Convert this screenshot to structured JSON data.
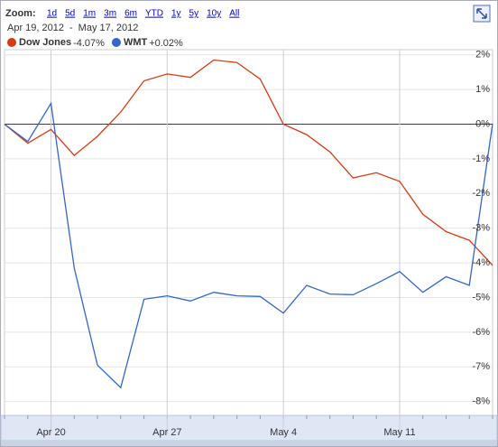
{
  "toolbar": {
    "zoom_label": "Zoom:",
    "zoom_options": [
      "1d",
      "5d",
      "1m",
      "3m",
      "6m",
      "YTD",
      "1y",
      "5y",
      "10y",
      "All"
    ],
    "date_from": "Apr 19, 2012",
    "date_sep": "-",
    "date_to": "May 17, 2012"
  },
  "chart_data": {
    "type": "line",
    "categories": [
      null,
      null,
      "Apr 20",
      null,
      null,
      null,
      null,
      "Apr 27",
      null,
      null,
      null,
      null,
      "May 4",
      null,
      null,
      null,
      null,
      "May 11",
      null,
      null,
      null,
      null
    ],
    "series": [
      {
        "name": "Dow Jones",
        "change": "-4.07%",
        "color": "#dc3912",
        "values": [
          0,
          -0.55,
          -0.15,
          -0.9,
          -0.35,
          0.35,
          1.25,
          1.45,
          1.35,
          1.85,
          1.78,
          1.3,
          0,
          -0.3,
          -0.8,
          -1.55,
          -1.4,
          -1.65,
          -2.6,
          -3.1,
          -3.35,
          -4.07
        ]
      },
      {
        "name": "WMT",
        "change": "+0.02%",
        "color": "#3366cc",
        "values": [
          0,
          -0.5,
          0.6,
          -4.15,
          -6.95,
          -7.6,
          -5.05,
          -4.95,
          -5.1,
          -4.85,
          -4.95,
          -4.97,
          -5.45,
          -4.65,
          -4.9,
          -4.92,
          -4.6,
          -4.25,
          -4.85,
          -4.4,
          -4.65,
          0.02
        ]
      }
    ],
    "ylim": [
      -8.4,
      2.15
    ],
    "yticks": [
      {
        "value": 2,
        "label": "2%"
      },
      {
        "value": 1,
        "label": "1%"
      },
      {
        "value": 0,
        "label": "0%"
      },
      {
        "value": -1,
        "label": "-1%"
      },
      {
        "value": -2,
        "label": "-2%"
      },
      {
        "value": -3,
        "label": "-3%"
      },
      {
        "value": -4,
        "label": "-4%"
      },
      {
        "value": -5,
        "label": "-5%"
      },
      {
        "value": -6,
        "label": "-6%"
      },
      {
        "value": -7,
        "label": "-7%"
      },
      {
        "value": -8,
        "label": "-8%"
      }
    ],
    "grid": true
  }
}
